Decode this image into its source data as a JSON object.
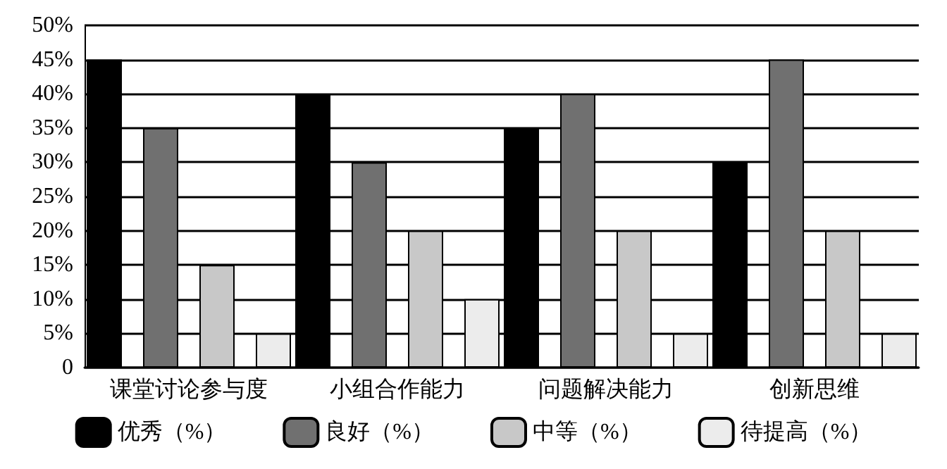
{
  "chart_data": {
    "type": "bar",
    "categories": [
      "课堂讨论参与度",
      "小组合作能力",
      "问题解决能力",
      "创新思维"
    ],
    "series": [
      {
        "name": "优秀（%）",
        "color": "#000000",
        "values": [
          45,
          40,
          35,
          30
        ]
      },
      {
        "name": "良好（%）",
        "color": "#707070",
        "values": [
          35,
          30,
          40,
          45
        ]
      },
      {
        "name": "中等（%）",
        "color": "#c8c8c8",
        "values": [
          15,
          20,
          20,
          20
        ]
      },
      {
        "name": "待提高（%）",
        "color": "#ececec",
        "values": [
          5,
          10,
          5,
          5
        ]
      }
    ],
    "ylim": [
      0,
      50
    ],
    "yticks": [
      {
        "value": 0,
        "label": "0"
      },
      {
        "value": 5,
        "label": "5%"
      },
      {
        "value": 10,
        "label": "10%"
      },
      {
        "value": 15,
        "label": "15%"
      },
      {
        "value": 20,
        "label": "20%"
      },
      {
        "value": 25,
        "label": "25%"
      },
      {
        "value": 30,
        "label": "30%"
      },
      {
        "value": 35,
        "label": "35%"
      },
      {
        "value": 40,
        "label": "40%"
      },
      {
        "value": 45,
        "label": "45%"
      },
      {
        "value": 50,
        "label": "50%"
      }
    ],
    "grid": "y",
    "legend": "bottom"
  }
}
